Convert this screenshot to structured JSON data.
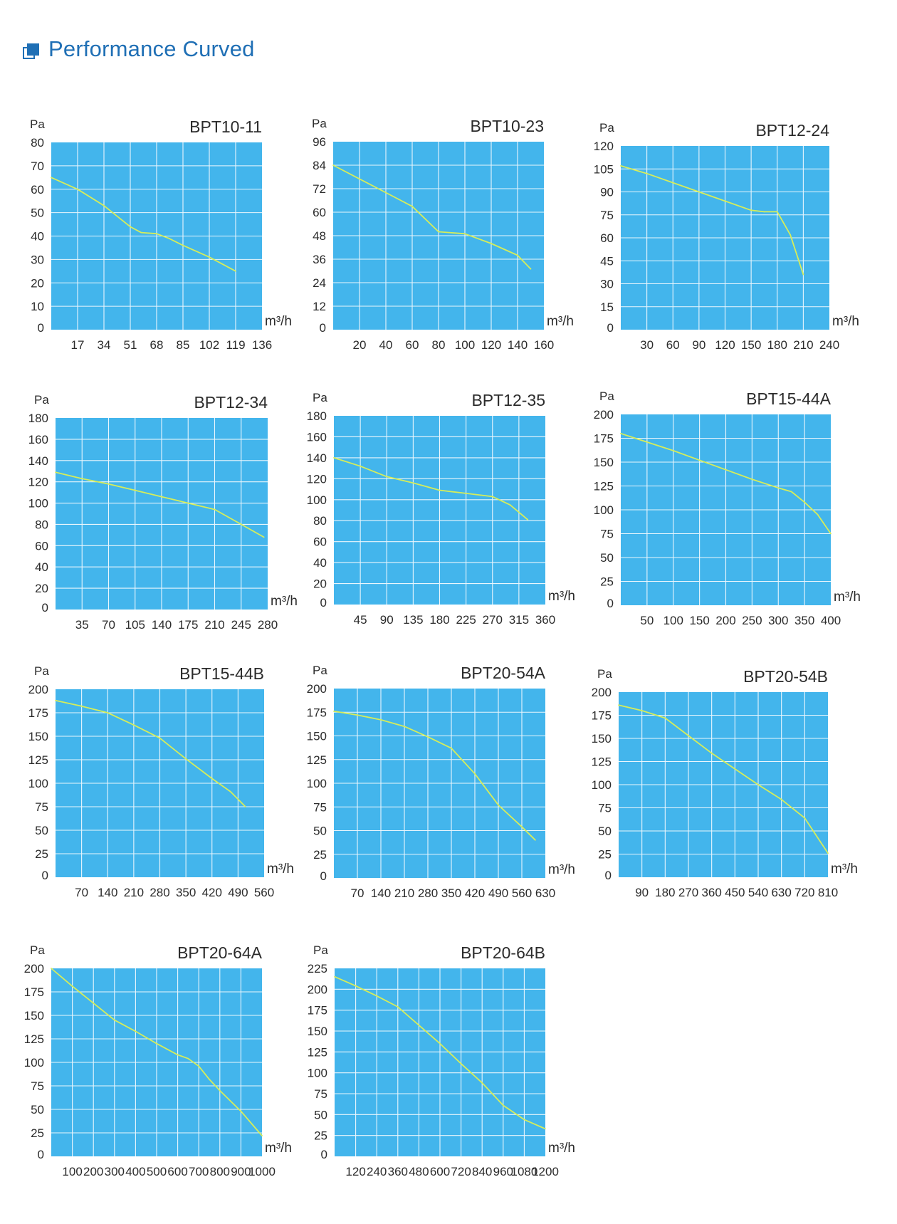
{
  "page": {
    "title": "Performance Curved"
  },
  "colors": {
    "accent": "#1f6fb5",
    "plot_bg": "#43b5ec",
    "grid": "#eaf6fd",
    "curve": "#d6ed5a",
    "text": "#2b2b2b"
  },
  "chart_data": [
    {
      "type": "line",
      "title": "BPT10-11",
      "ylabel": "Pa",
      "xlabel": "m³/h",
      "x_ticks": [
        17,
        34,
        51,
        68,
        85,
        102,
        119,
        136
      ],
      "y_ticks": [
        0,
        10,
        20,
        30,
        40,
        50,
        60,
        70,
        80
      ],
      "xlim": [
        0,
        136
      ],
      "ylim": [
        0,
        80
      ],
      "grid": true,
      "series": [
        {
          "x": [
            0,
            17,
            34,
            51,
            58,
            68,
            76,
            85,
            102,
            119
          ],
          "y": [
            65,
            60,
            53,
            44,
            41.5,
            41,
            39,
            36,
            31,
            25
          ]
        }
      ]
    },
    {
      "type": "line",
      "title": "BPT10-23",
      "ylabel": "Pa",
      "xlabel": "m³/h",
      "x_ticks": [
        20,
        40,
        60,
        80,
        100,
        120,
        140,
        160
      ],
      "y_ticks": [
        0,
        12,
        24,
        36,
        48,
        60,
        72,
        84,
        96
      ],
      "xlim": [
        0,
        160
      ],
      "ylim": [
        0,
        96
      ],
      "grid": true,
      "series": [
        {
          "x": [
            0,
            20,
            40,
            60,
            80,
            100,
            120,
            140,
            150
          ],
          "y": [
            84,
            77,
            70,
            63,
            50,
            49,
            44,
            38,
            31
          ]
        }
      ]
    },
    {
      "type": "line",
      "title": "BPT12-24",
      "ylabel": "Pa",
      "xlabel": "m³/h",
      "x_ticks": [
        30,
        60,
        90,
        120,
        150,
        180,
        210,
        240
      ],
      "y_ticks": [
        0,
        15,
        30,
        45,
        60,
        75,
        90,
        105,
        120
      ],
      "xlim": [
        0,
        240
      ],
      "ylim": [
        0,
        120
      ],
      "grid": true,
      "series": [
        {
          "x": [
            0,
            30,
            60,
            90,
            120,
            150,
            165,
            180,
            195,
            210
          ],
          "y": [
            107,
            102,
            96,
            90,
            84,
            78,
            77,
            77,
            62,
            36
          ]
        }
      ]
    },
    {
      "type": "line",
      "title": "BPT12-34",
      "ylabel": "Pa",
      "xlabel": "m³/h",
      "x_ticks": [
        35,
        70,
        105,
        140,
        175,
        210,
        245,
        280
      ],
      "y_ticks": [
        0,
        20,
        40,
        60,
        80,
        100,
        120,
        140,
        160,
        180
      ],
      "xlim": [
        0,
        280
      ],
      "ylim": [
        0,
        180
      ],
      "grid": true,
      "series": [
        {
          "x": [
            0,
            35,
            70,
            105,
            140,
            175,
            210,
            245,
            275
          ],
          "y": [
            129,
            123,
            118,
            112,
            106,
            100,
            94,
            80,
            68
          ]
        }
      ]
    },
    {
      "type": "line",
      "title": "BPT12-35",
      "ylabel": "Pa",
      "xlabel": "m³/h",
      "x_ticks": [
        45,
        90,
        135,
        180,
        225,
        270,
        315,
        360
      ],
      "y_ticks": [
        0,
        20,
        40,
        60,
        80,
        100,
        120,
        140,
        160,
        180
      ],
      "xlim": [
        0,
        360
      ],
      "ylim": [
        0,
        180
      ],
      "grid": true,
      "series": [
        {
          "x": [
            0,
            45,
            90,
            135,
            180,
            225,
            270,
            300,
            330
          ],
          "y": [
            140,
            132,
            122,
            116,
            109,
            106,
            103,
            95,
            81
          ]
        }
      ]
    },
    {
      "type": "line",
      "title": "BPT15-44A",
      "ylabel": "Pa",
      "xlabel": "m³/h",
      "x_ticks": [
        50,
        100,
        150,
        200,
        250,
        300,
        350,
        400
      ],
      "y_ticks": [
        0,
        25,
        50,
        75,
        100,
        125,
        150,
        175,
        200
      ],
      "xlim": [
        0,
        400
      ],
      "ylim": [
        0,
        200
      ],
      "grid": true,
      "series": [
        {
          "x": [
            0,
            50,
            100,
            150,
            200,
            250,
            300,
            325,
            350,
            375,
            400
          ],
          "y": [
            180,
            171,
            162,
            152,
            142,
            132,
            123,
            119,
            108,
            95,
            75
          ]
        }
      ]
    },
    {
      "type": "line",
      "title": "BPT15-44B",
      "ylabel": "Pa",
      "xlabel": "m³/h",
      "x_ticks": [
        70,
        140,
        210,
        280,
        350,
        420,
        490,
        560
      ],
      "y_ticks": [
        0,
        25,
        50,
        75,
        100,
        125,
        150,
        175,
        200
      ],
      "xlim": [
        0,
        560
      ],
      "ylim": [
        0,
        200
      ],
      "grid": true,
      "series": [
        {
          "x": [
            0,
            70,
            140,
            210,
            280,
            350,
            420,
            470,
            510
          ],
          "y": [
            188,
            182,
            175,
            162,
            148,
            126,
            105,
            91,
            75
          ]
        }
      ]
    },
    {
      "type": "line",
      "title": "BPT20-54A",
      "ylabel": "Pa",
      "xlabel": "m³/h",
      "x_ticks": [
        70,
        140,
        210,
        280,
        350,
        420,
        490,
        560,
        630
      ],
      "y_ticks": [
        0,
        25,
        50,
        75,
        100,
        125,
        150,
        175,
        200
      ],
      "xlim": [
        0,
        630
      ],
      "ylim": [
        0,
        200
      ],
      "grid": true,
      "series": [
        {
          "x": [
            0,
            70,
            140,
            210,
            280,
            350,
            420,
            490,
            560,
            600
          ],
          "y": [
            176,
            172,
            167,
            160,
            149,
            137,
            110,
            77,
            54,
            40
          ]
        }
      ]
    },
    {
      "type": "line",
      "title": "BPT20-54B",
      "ylabel": "Pa",
      "xlabel": "m³/h",
      "x_ticks": [
        90,
        180,
        270,
        360,
        450,
        540,
        630,
        720,
        810
      ],
      "y_ticks": [
        0,
        25,
        50,
        75,
        100,
        125,
        150,
        175,
        200
      ],
      "xlim": [
        0,
        810
      ],
      "ylim": [
        0,
        200
      ],
      "grid": true,
      "series": [
        {
          "x": [
            0,
            90,
            180,
            270,
            360,
            450,
            540,
            630,
            720,
            810
          ],
          "y": [
            186,
            180,
            172,
            153,
            134,
            117,
            100,
            84,
            64,
            26
          ]
        }
      ]
    },
    {
      "type": "line",
      "title": "BPT20-64A",
      "ylabel": "Pa",
      "xlabel": "m³/h",
      "x_ticks": [
        100,
        200,
        300,
        400,
        500,
        600,
        700,
        800,
        900,
        1000
      ],
      "y_ticks": [
        0,
        25,
        50,
        75,
        100,
        125,
        150,
        175,
        200
      ],
      "xlim": [
        0,
        1000
      ],
      "ylim": [
        0,
        200
      ],
      "grid": true,
      "series": [
        {
          "x": [
            0,
            100,
            200,
            300,
            400,
            500,
            600,
            650,
            700,
            750,
            800,
            900,
            1000
          ],
          "y": [
            200,
            181,
            163,
            145,
            133,
            120,
            108,
            104,
            96,
            82,
            70,
            48,
            22
          ]
        }
      ]
    },
    {
      "type": "line",
      "title": "BPT20-64B",
      "ylabel": "Pa",
      "xlabel": "m³/h",
      "x_ticks": [
        120,
        240,
        360,
        480,
        600,
        720,
        840,
        960,
        1080,
        1200
      ],
      "y_ticks": [
        0,
        25,
        50,
        75,
        100,
        125,
        150,
        175,
        200,
        225
      ],
      "xlim": [
        0,
        1200
      ],
      "ylim": [
        0,
        225
      ],
      "grid": true,
      "series": [
        {
          "x": [
            0,
            120,
            240,
            360,
            480,
            600,
            720,
            840,
            960,
            1080,
            1200
          ],
          "y": [
            215,
            204,
            192,
            179,
            157,
            135,
            111,
            88,
            61,
            44,
            33
          ]
        }
      ]
    }
  ]
}
